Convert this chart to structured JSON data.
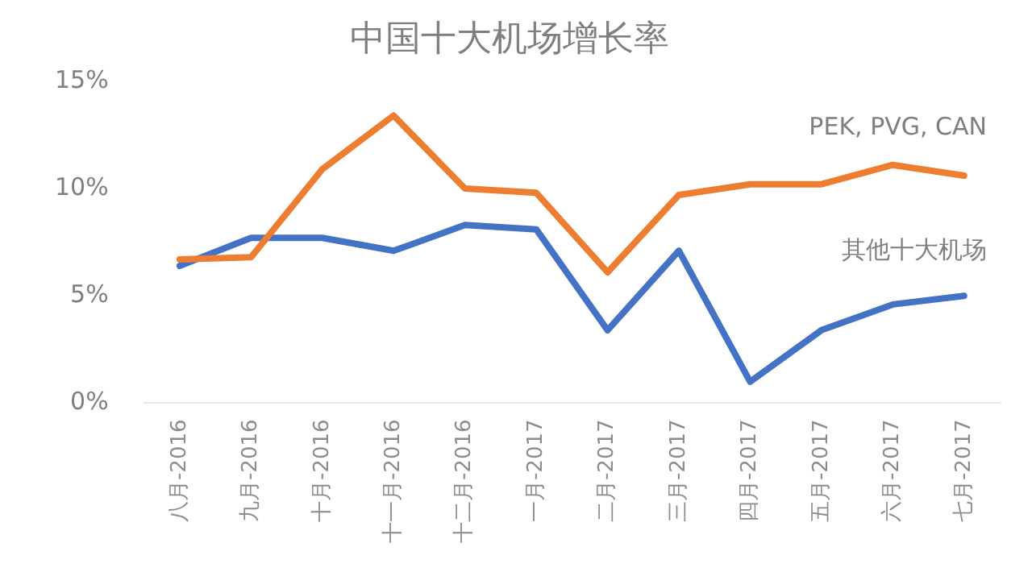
{
  "chart_data": {
    "type": "line",
    "title": "中国十大机场增长率",
    "categories": [
      "八月-2016",
      "九月-2016",
      "十月-2016",
      "十一月-2016",
      "十二月-2016",
      "一月-2017",
      "二月-2017",
      "三月-2017",
      "四月-2017",
      "五月-2017",
      "六月-2017",
      "七月-2017"
    ],
    "series": [
      {
        "name": "PEK, PVG, CAN",
        "color": "#ed7d31",
        "values": [
          6.7,
          6.8,
          10.9,
          13.4,
          10.0,
          9.8,
          6.1,
          9.7,
          10.2,
          10.2,
          11.1,
          10.6
        ]
      },
      {
        "name": "其他十大机场",
        "color": "#4472c4",
        "values": [
          6.4,
          7.7,
          7.7,
          7.1,
          8.3,
          8.1,
          3.4,
          7.1,
          1.0,
          3.4,
          4.6,
          5.0
        ]
      }
    ],
    "ylim": [
      0,
      15
    ],
    "yticks": [
      {
        "value": 0,
        "label": "0%"
      },
      {
        "value": 5,
        "label": "5%"
      },
      {
        "value": 10,
        "label": "10%"
      },
      {
        "value": 15,
        "label": "15%"
      }
    ],
    "grid": false,
    "legend": false,
    "marker": "none",
    "line_style": "solid"
  }
}
